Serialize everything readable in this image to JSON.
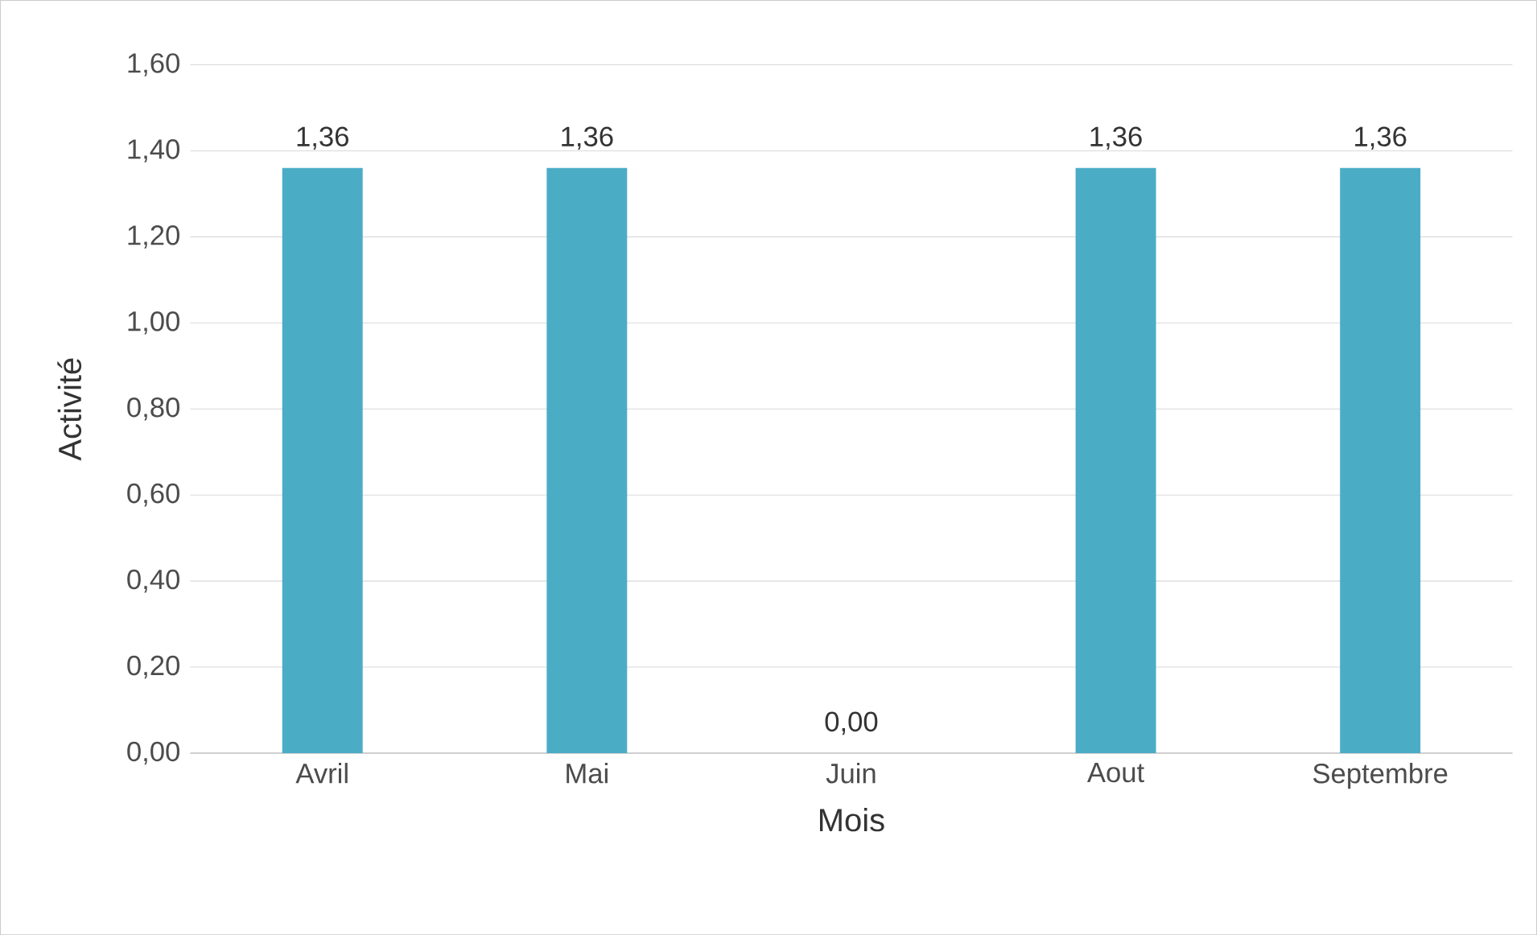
{
  "chart_data": {
    "type": "bar",
    "xlabel": "Mois",
    "ylabel": "Activité",
    "categories": [
      "Avril",
      "Mai",
      "Juin",
      "Aout",
      "Septembre"
    ],
    "values": [
      1.36,
      1.36,
      0,
      1.36,
      1.36
    ],
    "value_labels": [
      "1,36",
      "1,36",
      "0,00",
      "1,36",
      "1,36"
    ],
    "color": "#4bacc6",
    "ylim": [
      0,
      1.6
    ],
    "yticks": [
      {
        "value": 0,
        "label": "0,00"
      },
      {
        "value": 0.2,
        "label": "0,20"
      },
      {
        "value": 0.4,
        "label": "0,40"
      },
      {
        "value": 0.6,
        "label": "0,60"
      },
      {
        "value": 0.8,
        "label": "0,80"
      },
      {
        "value": 1.0,
        "label": "1,00"
      },
      {
        "value": 1.2,
        "label": "1,20"
      },
      {
        "value": 1.4,
        "label": "1,40"
      },
      {
        "value": 1.6,
        "label": "1,60"
      }
    ],
    "grid": "y"
  }
}
